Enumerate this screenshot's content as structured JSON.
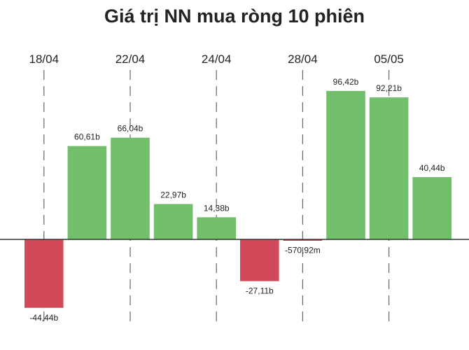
{
  "chart_data": {
    "type": "bar",
    "title": "Giá trị NN mua ròng 10 phiên",
    "xlabel": "",
    "ylabel": "",
    "unit": "b",
    "values": [
      -44.44,
      60.61,
      66.04,
      22.97,
      14.38,
      -27.11,
      -0.57092,
      96.42,
      92.21,
      40.44
    ],
    "labels": [
      "-44,44b",
      "60,61b",
      "66,04b",
      "22,97b",
      "14,38b",
      "-27,11b",
      "-570,92m",
      "96,42b",
      "92,21b",
      "40,44b"
    ],
    "x_ticks": [
      {
        "label": "18/04",
        "bar_index": 0
      },
      {
        "label": "22/04",
        "bar_index": 2
      },
      {
        "label": "24/04",
        "bar_index": 4
      },
      {
        "label": "28/04",
        "bar_index": 6
      },
      {
        "label": "05/05",
        "bar_index": 8
      }
    ],
    "grid_lines": "dashed-vertical-at-ticks",
    "legend": "none"
  },
  "colors": {
    "positive": "#71bf6a",
    "negative": "#d24a5a",
    "axis": "#333333",
    "grid": "#666666",
    "text": "#222222"
  }
}
